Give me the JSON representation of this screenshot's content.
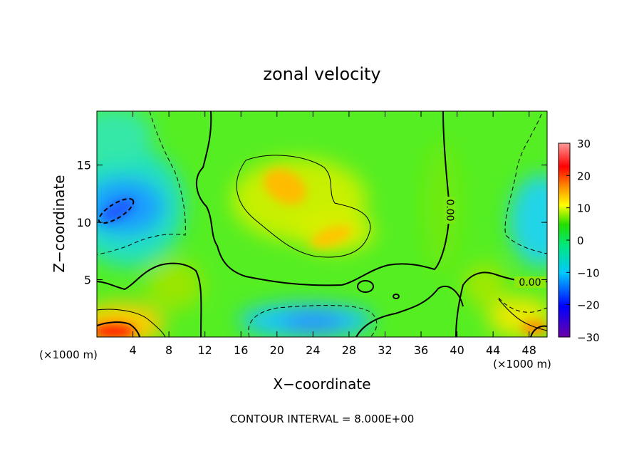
{
  "chart_data": {
    "type": "heatmap",
    "title": "zonal velocity",
    "xlabel": "X−coordinate",
    "ylabel": "Z−coordinate",
    "x_unit_label_left": "(×1000 m)",
    "x_unit_label_right": "(×1000 m)",
    "xlim": [
      0,
      50
    ],
    "ylim": [
      0,
      19.7
    ],
    "x_ticks": [
      4,
      8,
      12,
      16,
      20,
      24,
      28,
      32,
      36,
      40,
      44,
      48
    ],
    "y_ticks": [
      5,
      10,
      15
    ],
    "colorbar": {
      "range": [
        -30,
        30
      ],
      "ticks": [
        30,
        20,
        10,
        0,
        -10,
        -20,
        -30
      ],
      "stops": [
        "#6a00a8",
        "#0000ff",
        "#00c8ff",
        "#00e880",
        "#22dd00",
        "#ffff00",
        "#ff8800",
        "#ff0000",
        "#ff9a9a"
      ]
    },
    "contour_labels": [
      "0.00",
      "0.00"
    ],
    "footer": "CONTOUR INTERVAL = 8.000E+00",
    "velocity_features": [
      {
        "x": 22,
        "z": 13,
        "value": 14
      },
      {
        "x": 26,
        "z": 8.8,
        "value": 12
      },
      {
        "x": 2.5,
        "z": 11.5,
        "value": -17
      },
      {
        "x": 24,
        "z": 1.3,
        "value": -12
      },
      {
        "x": 49,
        "z": 10.5,
        "value": -9
      },
      {
        "x": 1.5,
        "z": 0.5,
        "value": 22
      },
      {
        "x": 47.5,
        "z": 1,
        "value": 16
      },
      {
        "x": 0,
        "z": 18,
        "value": -6
      },
      {
        "x": 3,
        "z": 5,
        "value": 4
      },
      {
        "x": 12,
        "z": 18,
        "value": 6
      },
      {
        "x": 40,
        "z": 10,
        "value": 5
      }
    ]
  }
}
